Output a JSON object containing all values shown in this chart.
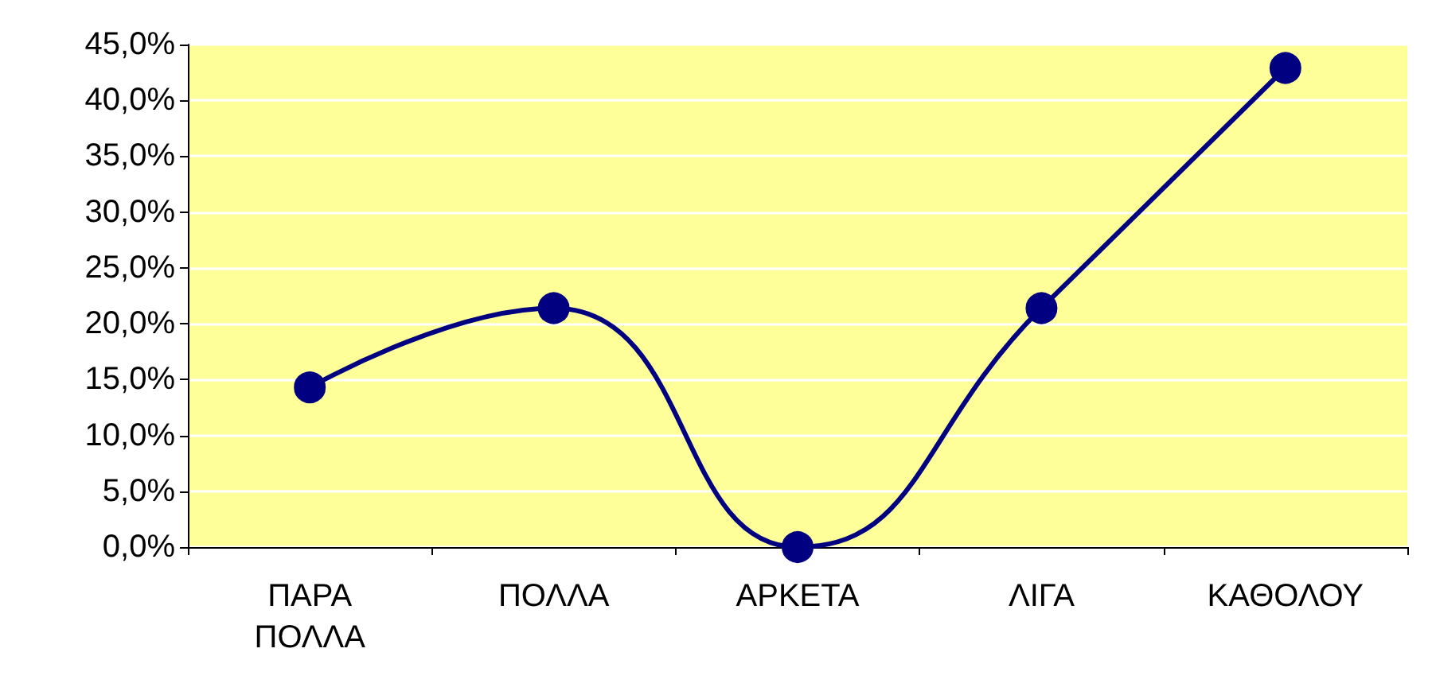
{
  "chart_data": {
    "type": "line",
    "categories": [
      "ΠΑΡΑ ΠΟΛΛΑ",
      "ΠΟΛΛΑ",
      "ΑΡΚΕΤΑ",
      "ΛΙΓΑ",
      "ΚΑΘΟΛΟΥ"
    ],
    "values": [
      14.3,
      21.4,
      0,
      21.4,
      42.9
    ],
    "color": "#000080",
    "ylim": [
      0,
      45
    ],
    "yticks": [
      {
        "value": 0,
        "label": "0,0%"
      },
      {
        "value": 5,
        "label": "5,0%"
      },
      {
        "value": 10,
        "label": "10,0%"
      },
      {
        "value": 15,
        "label": "15,0%"
      },
      {
        "value": 20,
        "label": "20,0%"
      },
      {
        "value": 25,
        "label": "25,0%"
      },
      {
        "value": 30,
        "label": "30,0%"
      },
      {
        "value": 35,
        "label": "35,0%"
      },
      {
        "value": 40,
        "label": "40,0%"
      },
      {
        "value": 45,
        "label": "45,0%"
      }
    ],
    "grid": "y",
    "marker": "circle",
    "line_style": "solid"
  }
}
